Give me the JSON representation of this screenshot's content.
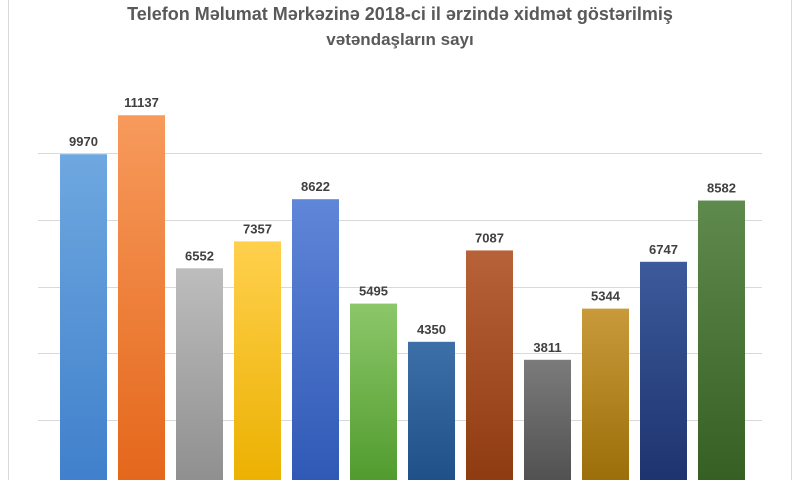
{
  "title": {
    "line1": "Telefon Məlumat Mərkəzinə 2018-ci il ərzində xidmət göstərilmiş",
    "line2": "vətəndaşların sayı"
  },
  "chart_data": {
    "type": "bar",
    "title": "Telefon Məlumat Mərkəzinə 2018-ci il ərzində xidmət göstərilmiş vətəndaşların sayı",
    "xlabel": "",
    "ylabel": "",
    "grid": true,
    "legend": "none",
    "ylim": [
      0,
      12000
    ],
    "gridlines": [
      2000,
      4000,
      6000,
      8000,
      10000
    ],
    "values": [
      9970,
      11137,
      6552,
      7357,
      8622,
      5495,
      4350,
      7087,
      3811,
      5344,
      6747,
      8582
    ],
    "colors": [
      [
        "#6fa8e0",
        "#3f7fcb"
      ],
      [
        "#f79a5c",
        "#e4661a"
      ],
      [
        "#bdbdbd",
        "#8e8e8e"
      ],
      [
        "#ffd04d",
        "#ebb000"
      ],
      [
        "#5f86d8",
        "#2f58b5"
      ],
      [
        "#8cc76a",
        "#4f9a2c"
      ],
      [
        "#3d6fa8",
        "#1e4f86"
      ],
      [
        "#b8623a",
        "#8e3a10"
      ],
      [
        "#7b7b7b",
        "#4f4f4f"
      ],
      [
        "#c99a3a",
        "#9a6d08"
      ],
      [
        "#3d5a9a",
        "#1c326d"
      ],
      [
        "#5f8a4d",
        "#355f22"
      ]
    ]
  }
}
